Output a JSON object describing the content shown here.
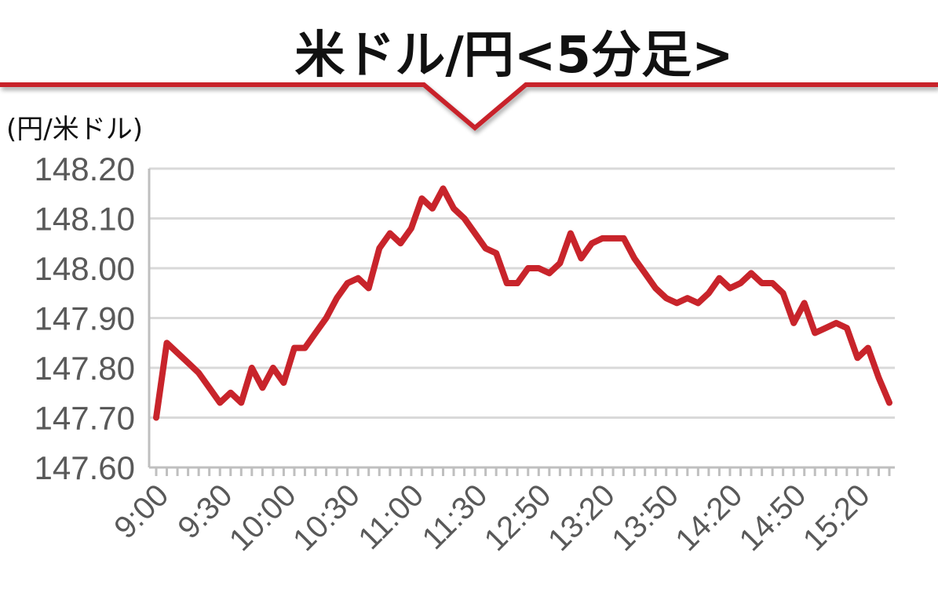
{
  "chart_data": {
    "type": "line",
    "title": "米ドル/円<5分足>",
    "unit_label": "(円/米ドル)",
    "ylim": [
      147.6,
      148.2
    ],
    "y_ticks": [
      "147.60",
      "147.70",
      "147.80",
      "147.90",
      "148.00",
      "148.10",
      "148.20"
    ],
    "x_tick_labels": [
      "9:00",
      "9:30",
      "10:00",
      "10:30",
      "11:00",
      "11:30",
      "12:50",
      "13:20",
      "13:50",
      "14:20",
      "14:50",
      "15:20"
    ],
    "grid": true,
    "series": [
      {
        "values": [
          147.7,
          147.85,
          147.83,
          147.81,
          147.79,
          147.76,
          147.73,
          147.75,
          147.73,
          147.8,
          147.76,
          147.8,
          147.77,
          147.84,
          147.84,
          147.87,
          147.9,
          147.94,
          147.97,
          147.98,
          147.96,
          148.04,
          148.07,
          148.05,
          148.08,
          148.14,
          148.12,
          148.16,
          148.12,
          148.1,
          148.07,
          148.04,
          148.03,
          147.97,
          147.97,
          148.0,
          148.0,
          147.99,
          148.01,
          148.07,
          148.02,
          148.05,
          148.06,
          148.06,
          148.06,
          148.02,
          147.99,
          147.96,
          147.94,
          147.93,
          147.94,
          147.93,
          147.95,
          147.98,
          147.96,
          147.97,
          147.99,
          147.97,
          147.97,
          147.95,
          147.89,
          147.93,
          147.87,
          147.88,
          147.89,
          147.88,
          147.82,
          147.84,
          147.78,
          147.73
        ]
      }
    ],
    "colors": {
      "line": "#C8242B",
      "accent_band": "#C8242B",
      "grid": "#D9D9D9",
      "axis": "#BFBFBF",
      "tick_text": "#595959"
    }
  }
}
